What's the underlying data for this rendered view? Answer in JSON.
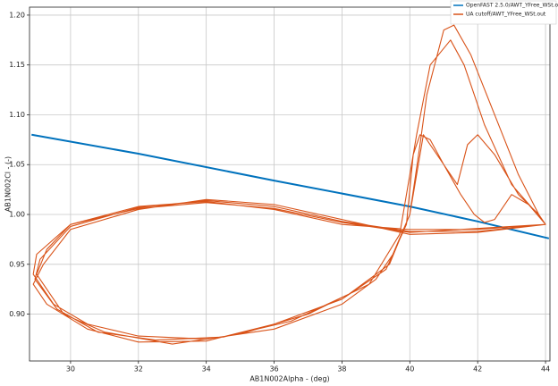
{
  "chart_data": {
    "type": "line",
    "xlabel": "AB1N002Alpha - (deg)",
    "ylabel": "AB1N002Cl - (-)",
    "xlim": [
      28.79,
      44.13
    ],
    "ylim": [
      0.853,
      1.208
    ],
    "xticks": [
      30,
      32,
      34,
      36,
      38,
      40,
      42,
      44
    ],
    "yticks": [
      {
        "value": 0.9,
        "label": "0.90"
      },
      0.95,
      {
        "value": 1.0,
        "label": "1.00"
      },
      1.05,
      {
        "value": 1.1,
        "label": "1.10"
      },
      1.15,
      {
        "value": 1.2,
        "label": "1.20"
      }
    ],
    "grid": true,
    "legend": "upper right",
    "series": [
      {
        "name": "OpenFAST 2.5.0/AWT_YFree_WSt.out",
        "color": "#0072bd",
        "x": [
          28.85,
          32,
          36,
          40,
          42,
          44.1
        ],
        "y": [
          1.08,
          1.061,
          1.034,
          1.008,
          0.993,
          0.976
        ]
      },
      {
        "name": "UA cutoff/AWT_YFree_WSt.out",
        "color": "#d95319",
        "x": [
          44,
          42,
          40,
          38,
          36,
          34,
          32,
          30,
          29,
          28.9,
          29.5,
          30.5,
          32,
          34,
          36,
          38,
          39,
          39.5,
          40,
          40.3,
          40.5,
          41,
          41.3,
          41.8,
          42.5,
          43.2,
          43.8,
          44,
          42,
          40,
          38,
          36,
          34,
          32,
          30,
          29.2,
          28.9,
          29.3,
          30.5,
          32,
          34,
          36,
          38,
          39.3,
          39.9,
          40.1,
          40.3,
          40.6,
          41,
          41.5,
          41.9,
          42.2,
          42.5,
          43,
          43.5,
          44,
          42,
          40,
          38,
          36,
          34,
          32,
          30,
          29.1,
          28.95,
          29.6,
          30.8,
          32.5,
          34.5,
          36.5,
          38.2,
          39.4,
          40,
          40.4,
          41,
          41.4,
          41.7,
          42,
          42.5,
          43.2,
          43.8,
          44,
          42,
          40,
          38,
          36,
          34,
          32,
          30,
          29.3,
          29,
          29.8,
          31,
          33,
          35,
          37,
          38.8,
          39.7,
          40.2,
          40.6,
          41.2,
          41.6,
          42.2,
          43,
          43.9
        ],
        "y": [
          0.99,
          0.985,
          0.985,
          0.99,
          1.005,
          1.013,
          1.008,
          0.99,
          0.96,
          0.94,
          0.91,
          0.89,
          0.878,
          0.875,
          0.885,
          0.91,
          0.935,
          0.96,
          1.0,
          1.07,
          1.12,
          1.185,
          1.19,
          1.16,
          1.1,
          1.04,
          1.0,
          0.99,
          0.982,
          0.98,
          0.995,
          1.01,
          1.015,
          1.005,
          0.985,
          0.95,
          0.93,
          0.91,
          0.885,
          0.872,
          0.873,
          0.89,
          0.915,
          0.945,
          0.99,
          1.06,
          1.08,
          1.075,
          1.05,
          1.02,
          1.0,
          0.992,
          0.995,
          1.02,
          1.01,
          0.99,
          0.983,
          0.983,
          0.993,
          1.008,
          1.014,
          1.007,
          0.988,
          0.955,
          0.935,
          0.905,
          0.882,
          0.874,
          0.877,
          0.893,
          0.92,
          0.95,
          1.0,
          1.08,
          1.05,
          1.03,
          1.07,
          1.08,
          1.06,
          1.02,
          1.0,
          0.99,
          0.986,
          0.982,
          0.992,
          1.006,
          1.012,
          1.006,
          0.99,
          0.965,
          0.94,
          0.9,
          0.882,
          0.87,
          0.88,
          0.9,
          0.93,
          0.98,
          1.08,
          1.15,
          1.175,
          1.15,
          1.09,
          1.03,
          0.995
        ]
      }
    ]
  }
}
